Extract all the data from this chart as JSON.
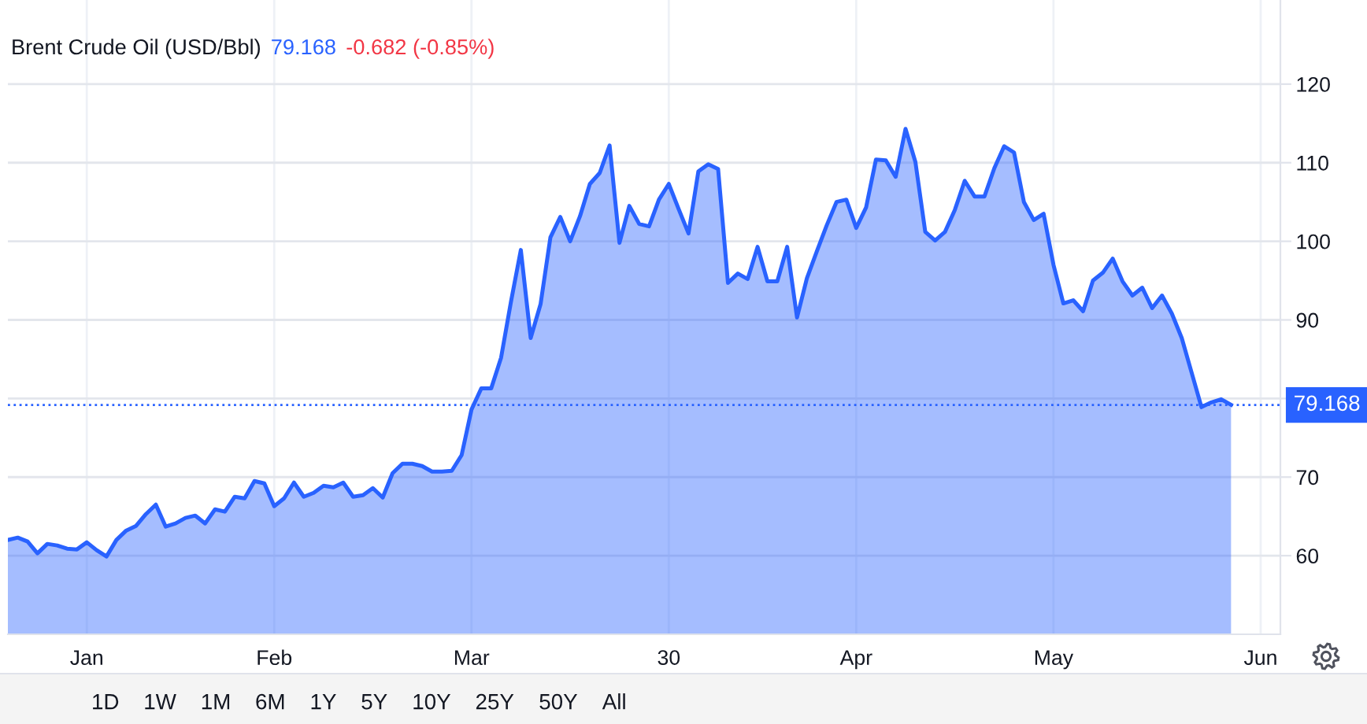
{
  "chart_data": [
    {
      "type": "area",
      "title": "Brent Crude Oil (USD/Bbl)",
      "annotations": [
        "79.168",
        "-0.682 (-0.85%)"
      ],
      "categories": [
        null,
        null,
        null,
        null,
        null,
        null,
        null,
        null,
        "Jan",
        null,
        null,
        null,
        null,
        null,
        null,
        null,
        null,
        null,
        null,
        null,
        null,
        null,
        null,
        null,
        null,
        null,
        null,
        "Feb",
        null,
        null,
        null,
        null,
        null,
        null,
        null,
        null,
        null,
        null,
        null,
        null,
        null,
        null,
        null,
        null,
        null,
        null,
        null,
        "Mar",
        null,
        null,
        null,
        null,
        null,
        null,
        null,
        null,
        null,
        null,
        null,
        null,
        null,
        null,
        null,
        null,
        null,
        null,
        null,
        "30",
        null,
        null,
        null,
        null,
        null,
        null,
        null,
        null,
        null,
        null,
        null,
        null,
        null,
        null,
        null,
        null,
        null,
        null,
        "Apr",
        null,
        null,
        null,
        null,
        null,
        null,
        null,
        null,
        null,
        null,
        null,
        null,
        null,
        null,
        null,
        null,
        null,
        null,
        null,
        "May",
        null,
        null,
        null,
        null,
        null,
        null,
        null,
        null,
        null,
        null,
        null,
        null,
        null,
        null,
        null,
        null,
        null,
        null,
        null,
        null,
        "Jun",
        null,
        null
      ],
      "series": [
        {
          "color": "#2962ff",
          "values": [
            62.0,
            62.3,
            61.8,
            60.3,
            61.5,
            61.3,
            60.9,
            60.8,
            61.7,
            60.7,
            59.9,
            62.0,
            63.2,
            63.8,
            65.3,
            66.5,
            63.7,
            64.1,
            64.8,
            65.1,
            64.1,
            65.9,
            65.6,
            67.5,
            67.3,
            69.5,
            69.2,
            66.3,
            67.3,
            69.3,
            67.5,
            68.0,
            68.9,
            68.7,
            69.3,
            67.5,
            67.7,
            68.6,
            67.4,
            70.5,
            71.7,
            71.7,
            71.4,
            70.7,
            70.7,
            70.8,
            72.8,
            78.6,
            81.3,
            81.3,
            85.2,
            92.3,
            98.9,
            87.7,
            92.0,
            100.5,
            103.1,
            100.0,
            103.2,
            107.3,
            108.7,
            112.2,
            99.8,
            104.5,
            102.2,
            101.9,
            105.3,
            107.3,
            104.1,
            101.0,
            108.9,
            109.8,
            109.2,
            94.7,
            95.9,
            95.2,
            99.3,
            94.9,
            94.9,
            99.3,
            90.3,
            95.3,
            98.7,
            102.0,
            105.0,
            105.3,
            101.7,
            104.3,
            110.4,
            110.3,
            108.2,
            114.3,
            110.1,
            101.2,
            100.1,
            101.2,
            104.0,
            107.7,
            105.7,
            105.7,
            109.3,
            112.1,
            111.3,
            105.0,
            102.7,
            103.5,
            97.0,
            92.1,
            92.5,
            91.1,
            95.0,
            96.0,
            97.8,
            94.9,
            93.1,
            94.1,
            91.5,
            93.1,
            90.8,
            87.7,
            83.3,
            78.9,
            79.5,
            79.9,
            79.2,
            null,
            null,
            null,
            null,
            null
          ]
        }
      ],
      "ylim": [
        50,
        130.7
      ],
      "yticks": [
        60,
        70,
        {
          "value": 80,
          "label": null
        },
        90,
        100,
        110,
        120
      ],
      "grid": true,
      "ref_lines": [
        {
          "axis": "y",
          "value": 79.168,
          "label": "79.168",
          "color": "#2962ff",
          "line_style": "dotted"
        }
      ]
    },
    {
      "type": "other",
      "categories": [
        "1D",
        "1W",
        "1M",
        "6M",
        "1Y",
        "5Y",
        "10Y",
        "25Y",
        "50Y",
        "All"
      ]
    }
  ]
}
